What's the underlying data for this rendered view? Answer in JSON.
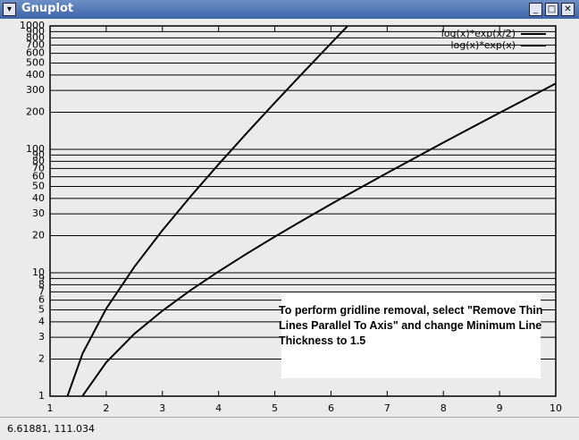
{
  "window": {
    "title": "Gnuplot",
    "status": "6.61881,  111.034"
  },
  "chart_data": {
    "type": "line",
    "x": [
      1.31,
      1.58,
      2,
      2.5,
      3,
      3.5,
      4,
      4.5,
      5,
      5.5,
      6,
      6.29,
      7,
      8,
      9,
      10
    ],
    "series": [
      {
        "name": "log(x)*exp(x/2)",
        "color": "#000000",
        "values": [
          null,
          1.008,
          1.88,
          3.2,
          4.92,
          7.21,
          10.24,
          14.27,
          19.61,
          26.66,
          35.99,
          42.7,
          64.44,
          113.5,
          197.8,
          341.8
        ]
      },
      {
        "name": "log(x)*exp(x)",
        "color": "#000000",
        "values": [
          1.0,
          2.22,
          5.12,
          11.16,
          22.07,
          41.49,
          75.69,
          135.4,
          238.9,
          417.1,
          722.8,
          991.6,
          null,
          null,
          null,
          null
        ]
      }
    ],
    "xlim": [
      1,
      10
    ],
    "xticks": [
      1,
      2,
      3,
      4,
      5,
      6,
      7,
      8,
      9,
      10
    ],
    "ylim": [
      1,
      1000
    ],
    "yscale": "log",
    "yticks": [
      1,
      2,
      3,
      4,
      5,
      6,
      7,
      8,
      9,
      10,
      20,
      30,
      40,
      50,
      60,
      70,
      80,
      90,
      100,
      200,
      300,
      400,
      500,
      600,
      700,
      800,
      900,
      1000
    ],
    "grid": true,
    "legend": "top-right",
    "annotation": "To perform gridline removal, select \"Remove Thin Lines Parallel To Axis\" and change Minimum Line Thickness to 1.5"
  }
}
